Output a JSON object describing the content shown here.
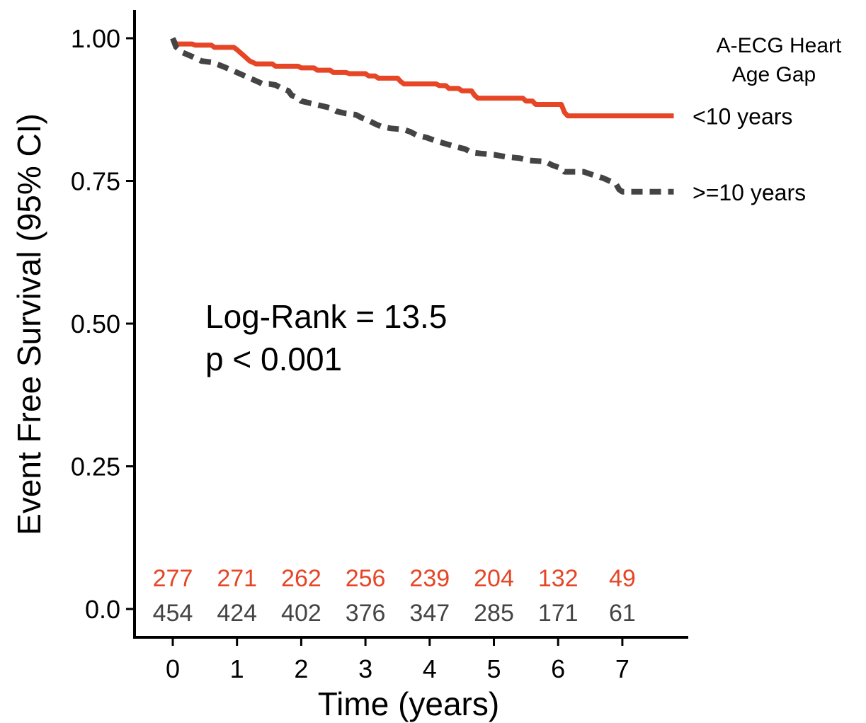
{
  "chart_data": {
    "type": "line",
    "title": "",
    "xlabel": "Time (years)",
    "ylabel": "Event Free Survival (95% CI)",
    "xlim": [
      -0.6,
      8.0
    ],
    "ylim": [
      -0.05,
      1.05
    ],
    "x_ticks": [
      0,
      1,
      2,
      3,
      4,
      5,
      6,
      7
    ],
    "x_tick_labels": [
      "0",
      "1",
      "2",
      "3",
      "4",
      "5",
      "6",
      "7"
    ],
    "y_ticks": [
      0,
      0.25,
      0.5,
      0.75,
      1.0
    ],
    "y_tick_labels": [
      "0.0",
      "0.25",
      "0.50",
      "0.75",
      "1.00"
    ],
    "grid": false,
    "legend_title_line1": "A-ECG Heart",
    "legend_title_line2": "Age Gap",
    "legend_placement": "right",
    "annotation_line1": "Log-Rank = 13.5",
    "annotation_line2": "p < 0.001",
    "series": [
      {
        "name": "<10 years",
        "color": "#E64526",
        "style": "solid",
        "points": [
          [
            0,
            1.0
          ],
          [
            0.05,
            0.99
          ],
          [
            0.3,
            0.99
          ],
          [
            0.35,
            0.988
          ],
          [
            0.6,
            0.988
          ],
          [
            0.65,
            0.984
          ],
          [
            0.95,
            0.984
          ],
          [
            1.0,
            0.98
          ],
          [
            1.05,
            0.975
          ],
          [
            1.12,
            0.968
          ],
          [
            1.2,
            0.96
          ],
          [
            1.3,
            0.955
          ],
          [
            1.55,
            0.955
          ],
          [
            1.6,
            0.951
          ],
          [
            1.95,
            0.951
          ],
          [
            2.0,
            0.948
          ],
          [
            2.2,
            0.948
          ],
          [
            2.25,
            0.944
          ],
          [
            2.45,
            0.944
          ],
          [
            2.5,
            0.94
          ],
          [
            2.7,
            0.94
          ],
          [
            2.75,
            0.938
          ],
          [
            3.0,
            0.938
          ],
          [
            3.05,
            0.934
          ],
          [
            3.15,
            0.934
          ],
          [
            3.2,
            0.93
          ],
          [
            3.5,
            0.93
          ],
          [
            3.55,
            0.924
          ],
          [
            3.6,
            0.92
          ],
          [
            4.1,
            0.92
          ],
          [
            4.15,
            0.917
          ],
          [
            4.25,
            0.917
          ],
          [
            4.3,
            0.912
          ],
          [
            4.45,
            0.912
          ],
          [
            4.5,
            0.908
          ],
          [
            4.65,
            0.908
          ],
          [
            4.7,
            0.9
          ],
          [
            4.75,
            0.895
          ],
          [
            5.45,
            0.895
          ],
          [
            5.5,
            0.89
          ],
          [
            5.6,
            0.89
          ],
          [
            5.65,
            0.884
          ],
          [
            6.05,
            0.884
          ],
          [
            6.1,
            0.87
          ],
          [
            6.15,
            0.864
          ],
          [
            7.8,
            0.864
          ]
        ],
        "at_risk": [
          277,
          271,
          262,
          256,
          239,
          204,
          132,
          49
        ]
      },
      {
        "name": ">=10 years",
        "color": "#444444",
        "style": "dashed",
        "points": [
          [
            0,
            1.0
          ],
          [
            0.05,
            0.985
          ],
          [
            0.15,
            0.975
          ],
          [
            0.3,
            0.968
          ],
          [
            0.45,
            0.96
          ],
          [
            0.6,
            0.958
          ],
          [
            0.75,
            0.952
          ],
          [
            0.9,
            0.945
          ],
          [
            1.0,
            0.94
          ],
          [
            1.1,
            0.935
          ],
          [
            1.2,
            0.93
          ],
          [
            1.3,
            0.925
          ],
          [
            1.4,
            0.92
          ],
          [
            1.5,
            0.92
          ],
          [
            1.6,
            0.918
          ],
          [
            1.7,
            0.912
          ],
          [
            1.8,
            0.908
          ],
          [
            1.85,
            0.9
          ],
          [
            1.95,
            0.895
          ],
          [
            2.0,
            0.89
          ],
          [
            2.15,
            0.886
          ],
          [
            2.3,
            0.882
          ],
          [
            2.45,
            0.878
          ],
          [
            2.55,
            0.872
          ],
          [
            2.7,
            0.868
          ],
          [
            2.85,
            0.866
          ],
          [
            2.95,
            0.86
          ],
          [
            3.05,
            0.856
          ],
          [
            3.15,
            0.85
          ],
          [
            3.25,
            0.845
          ],
          [
            3.4,
            0.842
          ],
          [
            3.6,
            0.84
          ],
          [
            3.7,
            0.836
          ],
          [
            3.8,
            0.83
          ],
          [
            3.95,
            0.826
          ],
          [
            4.1,
            0.82
          ],
          [
            4.25,
            0.815
          ],
          [
            4.4,
            0.81
          ],
          [
            4.55,
            0.806
          ],
          [
            4.65,
            0.8
          ],
          [
            4.8,
            0.798
          ],
          [
            5.0,
            0.796
          ],
          [
            5.2,
            0.792
          ],
          [
            5.4,
            0.79
          ],
          [
            5.55,
            0.786
          ],
          [
            5.8,
            0.784
          ],
          [
            5.9,
            0.778
          ],
          [
            6.05,
            0.772
          ],
          [
            6.1,
            0.766
          ],
          [
            6.4,
            0.766
          ],
          [
            6.5,
            0.762
          ],
          [
            6.7,
            0.755
          ],
          [
            6.9,
            0.745
          ],
          [
            6.95,
            0.735
          ],
          [
            7.0,
            0.731
          ],
          [
            7.8,
            0.731
          ]
        ],
        "at_risk": [
          454,
          424,
          402,
          376,
          347,
          285,
          171,
          61
        ]
      }
    ]
  }
}
